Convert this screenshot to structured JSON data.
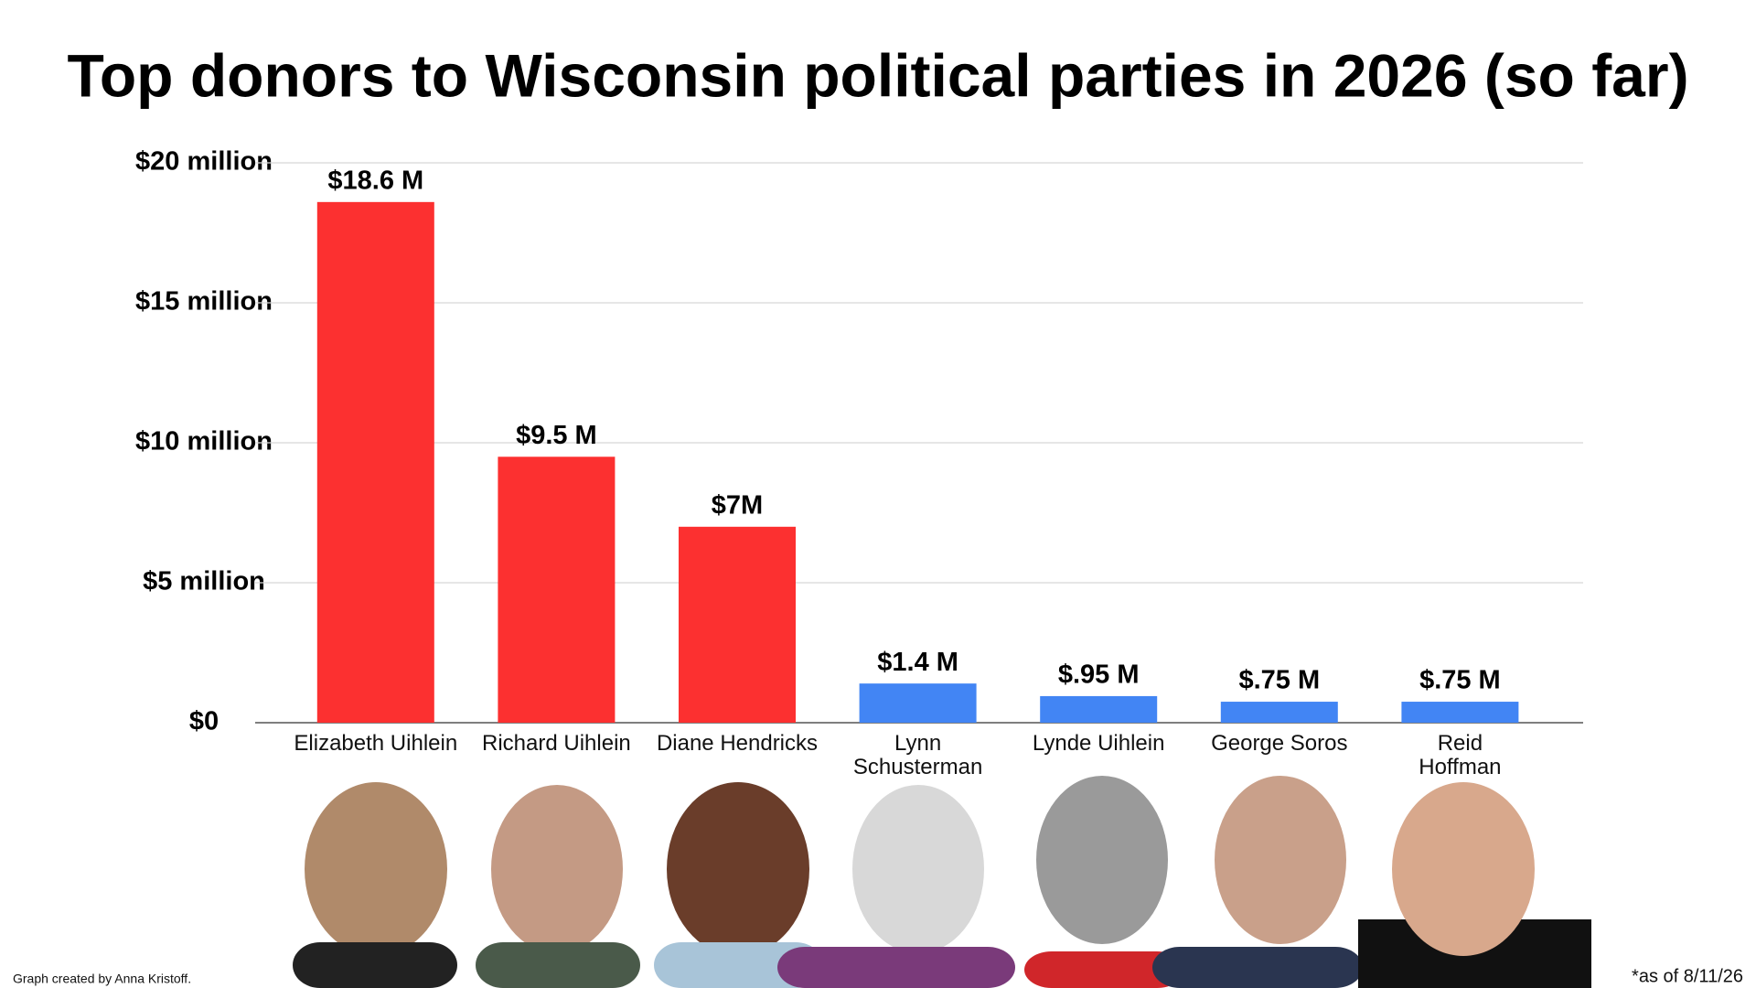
{
  "chart_data": {
    "type": "bar",
    "title": "Top donors to Wisconsin political parties in 2026 (so far)",
    "categories": [
      "Elizabeth Uihlein",
      "Richard Uihlein",
      "Diane Hendricks",
      "Lynn\nSchusterman",
      "Lynde Uihlein",
      "George Soros",
      "Reid\nHoffman"
    ],
    "values": [
      18.6,
      9.5,
      7,
      1.4,
      0.95,
      0.75,
      0.75
    ],
    "value_labels": [
      "$18.6 M",
      "$9.5 M",
      "$7M",
      "$1.4 M",
      "$.95 M",
      "$.75 M",
      "$.75 M"
    ],
    "colors": [
      "#fc3030",
      "#fc3030",
      "#fc3030",
      "#4285f4",
      "#4285f4",
      "#4285f4",
      "#4285f4"
    ],
    "ylim": [
      0,
      20
    ],
    "yticks": [
      {
        "value": 0,
        "label": "$0"
      },
      {
        "value": 5,
        "label": "$5 million"
      },
      {
        "value": 10,
        "label": "$10 million"
      },
      {
        "value": 15,
        "label": "$15 million"
      },
      {
        "value": 20,
        "label": "$20 million"
      }
    ],
    "grid": true,
    "credit": "Graph created by Anna Kristoff.",
    "note": "*as of 8/11/26"
  }
}
